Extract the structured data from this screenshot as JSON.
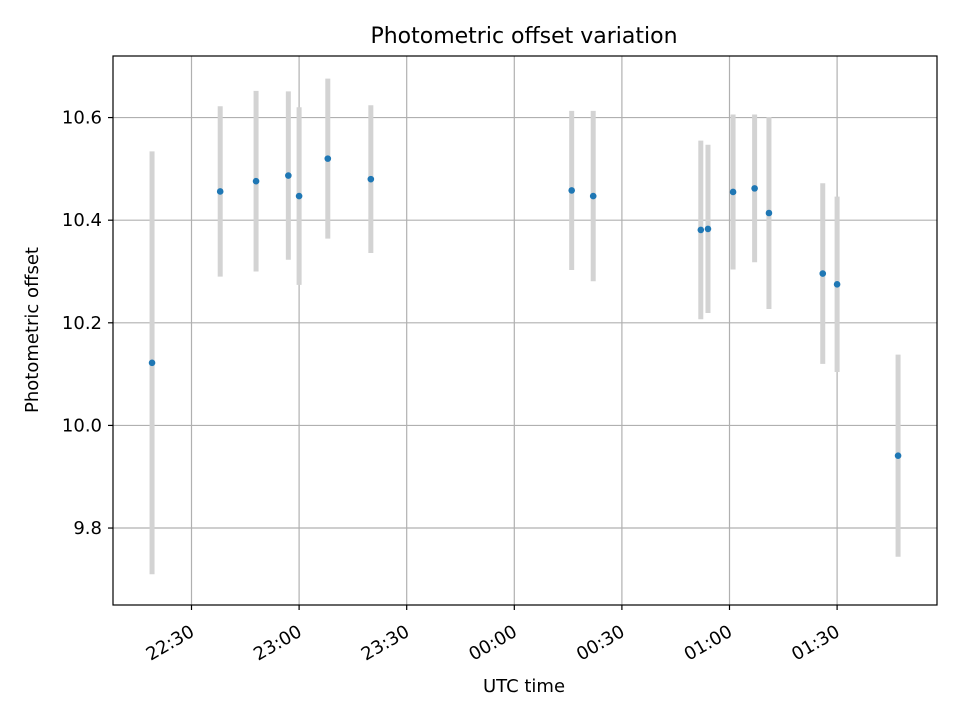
{
  "chart_data": {
    "type": "scatter",
    "title": "Photometric offset variation",
    "xlabel": "UTC time",
    "ylabel": "Photometric offset",
    "x_ticks": [
      "22:30",
      "23:00",
      "23:30",
      "00:00",
      "00:30",
      "01:00",
      "01:30"
    ],
    "y_ticks": [
      "9.8",
      "10.0",
      "10.2",
      "10.4",
      "10.6"
    ],
    "ylim": [
      9.65,
      10.72
    ],
    "grid": true,
    "legend": "none",
    "colors": {
      "point": "#1f77b4",
      "errorbar": "#d3d3d3",
      "grid": "#b0b0b0"
    },
    "points": [
      {
        "x": "22:19",
        "y": 10.122,
        "err": 0.412
      },
      {
        "x": "22:38",
        "y": 10.456,
        "err": 0.166
      },
      {
        "x": "22:48",
        "y": 10.476,
        "err": 0.176
      },
      {
        "x": "22:57",
        "y": 10.487,
        "err": 0.164
      },
      {
        "x": "23:00",
        "y": 10.447,
        "err": 0.173
      },
      {
        "x": "23:08",
        "y": 10.52,
        "err": 0.156
      },
      {
        "x": "23:20",
        "y": 10.48,
        "err": 0.144
      },
      {
        "x": "00:16",
        "y": 10.458,
        "err": 0.155
      },
      {
        "x": "00:22",
        "y": 10.447,
        "err": 0.166
      },
      {
        "x": "00:52",
        "y": 10.381,
        "err": 0.174
      },
      {
        "x": "00:54",
        "y": 10.383,
        "err": 0.164
      },
      {
        "x": "01:01",
        "y": 10.455,
        "err": 0.151
      },
      {
        "x": "01:07",
        "y": 10.462,
        "err": 0.144
      },
      {
        "x": "01:11",
        "y": 10.414,
        "err": 0.187
      },
      {
        "x": "01:26",
        "y": 10.296,
        "err": 0.176
      },
      {
        "x": "01:30",
        "y": 10.275,
        "err": 0.171
      },
      {
        "x": "01:47",
        "y": 9.941,
        "err": 0.197
      }
    ]
  }
}
